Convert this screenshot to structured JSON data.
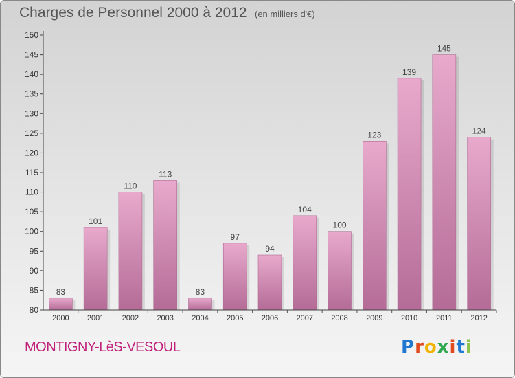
{
  "chart_data": {
    "type": "bar",
    "title": "Charges de Personnel 2000 à 2012",
    "subtitle": "(en milliers d'€)",
    "categories": [
      "2000",
      "2001",
      "2002",
      "2003",
      "2004",
      "2005",
      "2006",
      "2007",
      "2008",
      "2009",
      "2010",
      "2011",
      "2012"
    ],
    "values": [
      83,
      101,
      110,
      113,
      83,
      97,
      94,
      104,
      100,
      123,
      139,
      145,
      124
    ],
    "ylim": [
      80,
      150
    ],
    "yticks": [
      80,
      85,
      90,
      95,
      100,
      105,
      110,
      115,
      120,
      125,
      130,
      135,
      140,
      145,
      150
    ],
    "grid": false,
    "bar_color": "#c8699e"
  },
  "location": "MONTIGNY-LèS-VESOUL",
  "logo": {
    "letters": [
      "P",
      "r",
      "o",
      "x",
      "i",
      "t",
      "i"
    ],
    "colors": [
      "#1f77d0",
      "#e04a1e",
      "#f0b400",
      "#2fa84f",
      "#e04a1e",
      "#1f77d0",
      "#8bc34a"
    ]
  }
}
